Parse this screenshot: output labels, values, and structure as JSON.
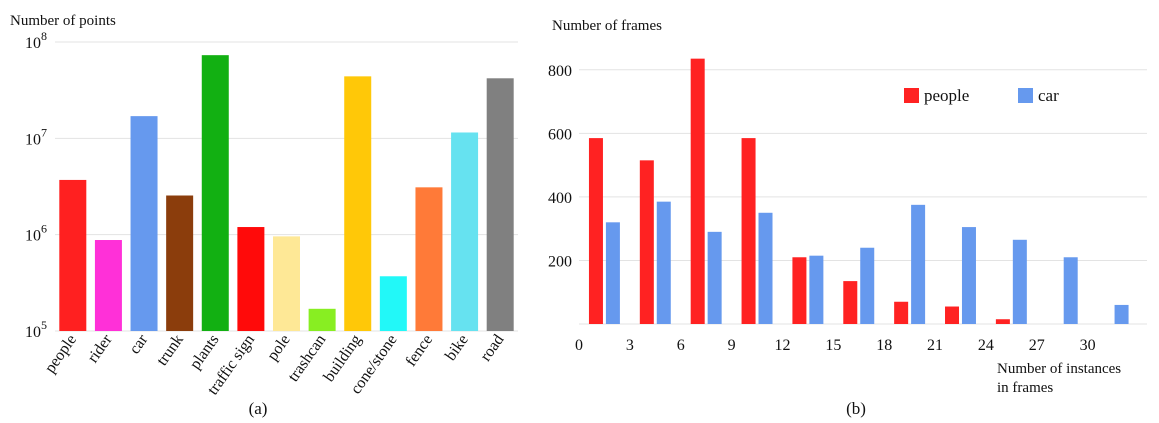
{
  "chart_data": [
    {
      "type": "bar",
      "caption": "(a)",
      "ylabel": "Number of points",
      "yscale": "log",
      "ylim": [
        100000,
        100000000
      ],
      "yticks": [
        {
          "value": 100000,
          "base": "10",
          "exp": "5"
        },
        {
          "value": 1000000,
          "base": "10",
          "exp": "6"
        },
        {
          "value": 10000000,
          "base": "10",
          "exp": "7"
        },
        {
          "value": 100000000,
          "base": "10",
          "exp": "8"
        }
      ],
      "grid": true,
      "categories": [
        "people",
        "rider",
        "car",
        "trunk",
        "plants",
        "traffic sign",
        "pole",
        "trashcan",
        "building",
        "cone/stone",
        "fence",
        "bike",
        "road"
      ],
      "values": [
        3700000,
        880000,
        17000000,
        2550000,
        73000000,
        1200000,
        960000,
        170000,
        44000000,
        370000,
        3100000,
        11500000,
        42000000
      ],
      "colors": [
        "#ff2020",
        "#ff30d8",
        "#6699ee",
        "#8b3d0c",
        "#12b012",
        "#ff0a0a",
        "#fee896",
        "#88ee22",
        "#ffc808",
        "#22f8f8",
        "#ff7a38",
        "#66e2f0",
        "#808080"
      ]
    },
    {
      "type": "bar",
      "caption": "(b)",
      "ylabel": "Number of frames",
      "xlabel": [
        "Number of instances",
        "in frames"
      ],
      "ylim": [
        0,
        900
      ],
      "yticks": [
        200,
        400,
        600,
        800
      ],
      "xticks": [
        "0",
        "3",
        "6",
        "9",
        "12",
        "15",
        "18",
        "21",
        "24",
        "27",
        "30"
      ],
      "grid": true,
      "legend_position": "top-right",
      "series": [
        {
          "name": "people",
          "color": "#ff2222",
          "x": [
            1,
            4,
            7,
            10,
            13,
            16,
            19,
            22,
            25,
            28,
            31
          ],
          "values": [
            585,
            515,
            835,
            585,
            210,
            135,
            70,
            55,
            15,
            0,
            0
          ]
        },
        {
          "name": "car",
          "color": "#6699ee",
          "x": [
            2,
            5,
            8,
            11,
            14,
            17,
            20,
            23,
            26,
            29,
            32
          ],
          "values": [
            320,
            385,
            290,
            350,
            215,
            240,
            375,
            305,
            265,
            210,
            60
          ]
        }
      ]
    }
  ]
}
